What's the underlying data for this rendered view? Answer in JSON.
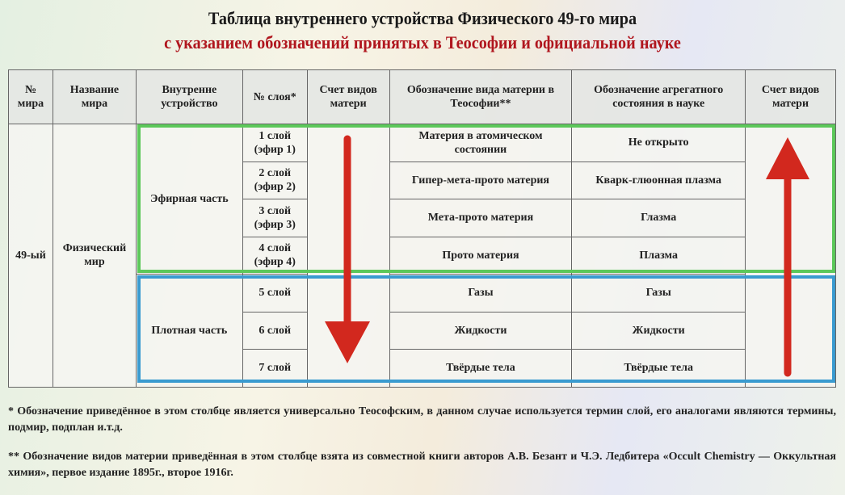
{
  "title": "Таблица внутреннего устройства Физического 49-го мира",
  "subtitle": "с указанием обозначений принятых в Теософии и официальной науке",
  "headers": [
    "№ мира",
    "Название мира",
    "Внутренне устройство",
    "№ слоя*",
    "Счет видов матери",
    "Обозначение вида материи в Теософии**",
    "Обозначение агрегатного состояния в науке",
    "Счет видов матери"
  ],
  "world_number": "49-ый",
  "world_name": "Физический мир",
  "parts": {
    "etheric": "Эфирная часть",
    "dense": "Плотная часть"
  },
  "rows": [
    {
      "layer": "1 слой (эфир 1)",
      "theosophy": "Материя в атомическом состоянии",
      "science": "Не открыто"
    },
    {
      "layer": "2 слой (эфир 2)",
      "theosophy": "Гипер-мета-прото материя",
      "science": "Кварк-глюонная плазма"
    },
    {
      "layer": "3 слой (эфир 3)",
      "theosophy": "Мета-прото материя",
      "science": "Глазма"
    },
    {
      "layer": "4 слой (эфир 4)",
      "theosophy": "Прото материя",
      "science": "Плазма"
    },
    {
      "layer": "5 слой",
      "theosophy": "Газы",
      "science": "Газы"
    },
    {
      "layer": "6 слой",
      "theosophy": "Жидкости",
      "science": "Жидкости"
    },
    {
      "layer": "7 слой",
      "theosophy": "Твёрдые тела",
      "science": "Твёрдые тела"
    }
  ],
  "notes": [
    "* Обозначение приведённое в этом столбце является универсально Теософским, в данном случае используется термин слой, его аналогами являются термины, подмир, подплан и.т.д.",
    "** Обозначение видов материи приведённая в этом столбце взята из совместной книги авторов А.В. Безант и Ч.Э. Ледбитера «Occult Chemistry — Оккультная химия», первое издание 1895г., второе 1916г."
  ],
  "colors": {
    "title": "#1a1a1a",
    "subtitle": "#b0161e",
    "etheric_box": "#5cc85a",
    "dense_box": "#3a9bd0",
    "arrow": "#d2281e"
  }
}
